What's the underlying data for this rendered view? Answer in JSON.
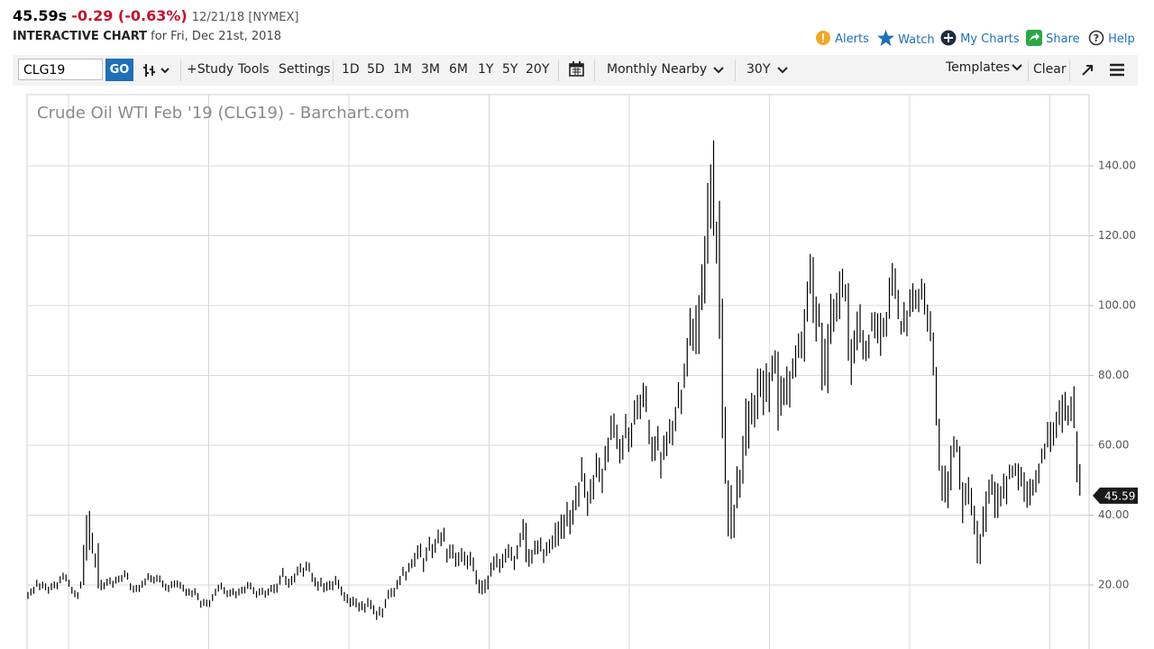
{
  "header": {
    "price": "45.59s",
    "change": "-0.29 (-0.63%)",
    "date_exchange": "12/21/18 [NYMEX]",
    "label": "INTERACTIVE CHART",
    "date": "for Fri, Dec 21st, 2018"
  },
  "actions": [
    "Alerts",
    "Watch",
    "My Charts",
    "Share",
    "Help"
  ],
  "toolbar": {
    "symbol": "CLG19",
    "go": "GO",
    "study": "+Study",
    "tools": "Tools",
    "settings": "Settings",
    "periods": [
      "1D",
      "5D",
      "1M",
      "3M",
      "6M",
      "1Y",
      "5Y",
      "20Y"
    ],
    "frequency": "Monthly Nearby",
    "range": "30Y",
    "templates": "Templates",
    "clear": "Clear"
  },
  "chart_data": {
    "type": "ohlc",
    "title": "Crude Oil WTI Feb '19 (CLG19) - Barchart.com",
    "color": "#000000",
    "grid": true,
    "ylim": [
      2,
      160
    ],
    "yticks": [
      {
        "value": 20,
        "label": "20.00"
      },
      {
        "value": 40,
        "label": "40.00"
      },
      {
        "value": 60,
        "label": "60.00"
      },
      {
        "value": 80,
        "label": "80.00"
      },
      {
        "value": 100,
        "label": "100.00"
      },
      {
        "value": 120,
        "label": "120.00"
      },
      {
        "value": 140,
        "label": "140.00"
      }
    ],
    "last": 45.59,
    "high": [
      18,
      19,
      19.5,
      21.5,
      20.5,
      21,
      20.5,
      19.5,
      20.5,
      21,
      20.8,
      22.5,
      23.5,
      23,
      21.5,
      19.5,
      18.5,
      18,
      21,
      31.5,
      40,
      41.2,
      35,
      29,
      32,
      21.5,
      20.8,
      21.8,
      22.2,
      21.2,
      22.4,
      22.7,
      22.9,
      24.2,
      23.5,
      20.5,
      19.8,
      20,
      20,
      21.2,
      21.9,
      23.4,
      22.8,
      22.4,
      22.9,
      22.7,
      21.3,
      20.4,
      20,
      21.1,
      21.3,
      21.3,
      20.9,
      20.1,
      18.9,
      19,
      18.5,
      19.1,
      17.7,
      15.5,
      16,
      15.8,
      15.7,
      17.4,
      18.9,
      20.1,
      20.7,
      19.4,
      18.5,
      18.7,
      19.1,
      18.2,
      19,
      19.5,
      19.6,
      20.9,
      20.7,
      19.4,
      18.3,
      19,
      19.2,
      18.4,
      19,
      20,
      20.2,
      20.4,
      22.7,
      24.9,
      22.6,
      21.8,
      22.6,
      23.3,
      25.3,
      26.2,
      25,
      26.7,
      26.4,
      23.5,
      22.2,
      21,
      22.1,
      20.5,
      20.9,
      21.2,
      21.1,
      22.6,
      21.5,
      19.6,
      18,
      17.4,
      16.3,
      16.7,
      16.2,
      15,
      15.4,
      14.7,
      16.3,
      15.7,
      14.2,
      12.6,
      13.8,
      13.3,
      16,
      18.6,
      19.1,
      19.2,
      21.4,
      22.6,
      25.2,
      23.9,
      26.3,
      27.4,
      29.2,
      31.4,
      31.9,
      27.7,
      30.8,
      33.8,
      31.7,
      33.2,
      35.9,
      35.1,
      36.4,
      30.4,
      31.6,
      31.6,
      29.2,
      29.4,
      30.6,
      29.6,
      28.5,
      29.5,
      27.9,
      24.2,
      21.6,
      21.3,
      21.7,
      22.7,
      26.4,
      28.2,
      29,
      27.5,
      28.9,
      30.4,
      31.7,
      30.9,
      28.3,
      31.4,
      34.9,
      38.9,
      37.8,
      30.3,
      30.1,
      32.7,
      32.8,
      33.6,
      30.3,
      32.3,
      33.1,
      34.2,
      37.8,
      38.2,
      40.2,
      40.2,
      43.8,
      41.5,
      44.3,
      48.4,
      49.4,
      56.6,
      52,
      46.8,
      50.3,
      51.5,
      57.8,
      56.5,
      53.3,
      59.8,
      62.2,
      68.5,
      69.1,
      65.9,
      61.8,
      62.9,
      69,
      65.1,
      66.4,
      72.9,
      74.4,
      74.5,
      77.9,
      77,
      67.3,
      62.4,
      62.6,
      65.5,
      58.1,
      62.8,
      63.9,
      67.5,
      67,
      71,
      78.1,
      75.9,
      83.4,
      90.7,
      99.3,
      96.2,
      100.1,
      103,
      111.8,
      119.9,
      135.1,
      140.4,
      147.3,
      124,
      130,
      102,
      71,
      50,
      48.6,
      43,
      54,
      53,
      62.7,
      73.4,
      72.7,
      75,
      74.4,
      82,
      82,
      81.4,
      83.5,
      80.9,
      85.7,
      87.2,
      86.8,
      79.8,
      79.3,
      82.6,
      81.3,
      84.9,
      88.6,
      92,
      92.6,
      99,
      106.9,
      114.8,
      113.9,
      102.6,
      100.6,
      95.1,
      90.5,
      94.7,
      103.4,
      101.9,
      103.7,
      109.8,
      110.6,
      106.1,
      106.4,
      90.4,
      92.9,
      98.3,
      100.4,
      93,
      89.9,
      91.7,
      98,
      98.2,
      97.8,
      97.9,
      96.5,
      98.2,
      108,
      112.2,
      110.7,
      104.5,
      95.6,
      101,
      98.6,
      104.6,
      106.4,
      104.5,
      104.8,
      107.7,
      106.4,
      100.3,
      98.4,
      92.3,
      82.4,
      67.6,
      54.2,
      54.2,
      52.5,
      59.9,
      62.6,
      61.6,
      59.7,
      49.4,
      49.2,
      50.9,
      47.8,
      42.7,
      38.4,
      34.6,
      42.5,
      46.8,
      50.2,
      51.7,
      49.6,
      49.1,
      48.3,
      51.9,
      51.2,
      54.5,
      54.2,
      54.9,
      54.8,
      53.8,
      52.3,
      49.7,
      50.4,
      50.2,
      52.9,
      54.8,
      59.1,
      60.5,
      66.7,
      66.7,
      66.6,
      69.6,
      72.9,
      74.5,
      75.3,
      71.4,
      74,
      76.9,
      64,
      54.6
    ],
    "low": [
      16,
      17,
      17.5,
      19.5,
      18.5,
      19,
      18.5,
      17.5,
      18.5,
      19,
      18.8,
      20.5,
      21.5,
      21,
      19.5,
      17.5,
      16.5,
      16,
      19,
      20,
      27,
      30,
      29,
      25,
      19,
      18.5,
      18.8,
      19.8,
      20.2,
      19.2,
      20.4,
      20.7,
      20.9,
      22.2,
      21.5,
      18.5,
      17.8,
      18,
      18,
      19.2,
      19.9,
      21.4,
      20.8,
      20.4,
      20.9,
      20.7,
      19.3,
      18.4,
      18,
      19.1,
      19.3,
      19.3,
      18.9,
      18.1,
      16.9,
      17,
      16.5,
      17.1,
      15.7,
      13.5,
      14,
      13.8,
      13.7,
      15.4,
      16.9,
      18.1,
      18.7,
      17.4,
      16.5,
      16.7,
      17.1,
      16.2,
      17,
      17.5,
      17.6,
      18.9,
      18.7,
      17.4,
      16.3,
      17,
      17.2,
      16.4,
      17,
      18,
      17.6,
      17.8,
      20.1,
      22.3,
      20,
      19.2,
      20,
      20.7,
      22.7,
      23.6,
      22.4,
      24.1,
      23.8,
      20.9,
      19.6,
      18.4,
      19.5,
      17.9,
      18.3,
      18.6,
      18.5,
      20,
      18.9,
      17,
      15.4,
      14.8,
      13.7,
      14.1,
      13.6,
      12.4,
      12.8,
      12.1,
      13.7,
      13.1,
      11.6,
      10,
      11.2,
      10.7,
      13.4,
      16,
      16.5,
      16.6,
      18.8,
      20,
      22.6,
      21.3,
      23.7,
      24.8,
      25.2,
      27.4,
      27.9,
      23.7,
      26.8,
      29.8,
      27.7,
      29.2,
      31.9,
      31.1,
      32.4,
      26.4,
      27.6,
      27.6,
      25.2,
      25.4,
      26.6,
      25.6,
      24.5,
      25.5,
      23.9,
      20.2,
      17.6,
      17.3,
      17.7,
      18.7,
      22.4,
      24.2,
      25,
      23.5,
      24.9,
      26.4,
      27.7,
      26.9,
      24.3,
      27.4,
      30.9,
      32.9,
      26.5,
      25.2,
      26.1,
      28.7,
      28.8,
      29.6,
      26.3,
      28.3,
      29.1,
      30.2,
      30.8,
      31.2,
      33.2,
      33.2,
      36.8,
      34.5,
      37.3,
      41.4,
      42.4,
      49.6,
      45,
      39.8,
      43.3,
      44.5,
      50.8,
      49.5,
      46.3,
      52.8,
      55.2,
      61.5,
      62.1,
      58.9,
      54.8,
      55.9,
      62,
      58.1,
      59.4,
      65.9,
      67.4,
      67.5,
      70.9,
      69.5,
      60.3,
      55.4,
      55.6,
      58.5,
      50.5,
      55.8,
      56.9,
      60.5,
      60,
      64,
      70.6,
      68.9,
      76.4,
      79.7,
      88.5,
      87,
      86.1,
      86.1,
      98.7,
      100.6,
      112,
      122,
      120,
      112,
      90.5,
      62,
      49,
      33.9,
      33.2,
      33.5,
      42,
      45,
      49,
      57,
      59.1,
      66,
      65.1,
      67.5,
      73.8,
      68.6,
      72.4,
      69.5,
      78.4,
      80.5,
      64.2,
      68.5,
      71.5,
      71.6,
      70.8,
      79,
      79.5,
      85,
      84.9,
      83.9,
      95.4,
      103.4,
      95,
      89.7,
      93.9,
      75.7,
      77.1,
      74.9,
      89,
      92.5,
      95.4,
      96.1,
      102.3,
      101.2,
      84.2,
      77.3,
      83.4,
      87.2,
      89.4,
      84.6,
      84.1,
      84.9,
      92.6,
      90.6,
      89.2,
      85.6,
      91,
      91.1,
      96.2,
      102.8,
      101.9,
      96.1,
      91.7,
      92.4,
      91.2,
      96.8,
      98.2,
      99,
      98.1,
      101.7,
      97.4,
      92.5,
      89.8,
      80,
      65.7,
      52.7,
      44.1,
      43.6,
      42,
      47.1,
      56.5,
      58,
      47.3,
      37.7,
      42.8,
      43.1,
      39.9,
      34.5,
      26.2,
      26,
      33.8,
      35.2,
      43.3,
      45.8,
      39.2,
      39.2,
      42.5,
      44.7,
      43.1,
      50.3,
      50.7,
      51.2,
      47.1,
      48.2,
      43.8,
      42.1,
      42.8,
      45.6,
      46.5,
      49.1,
      54.8,
      56,
      59.4,
      58.1,
      59.9,
      62.1,
      65.8,
      63.6,
      67,
      65.7,
      66.9,
      64.9,
      49.4,
      45.6
    ]
  }
}
